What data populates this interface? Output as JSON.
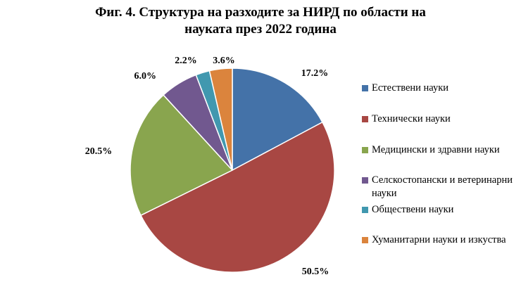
{
  "chart_data": {
    "type": "pie",
    "title_lines": [
      "Фиг. 4. Структура на разходите за НИРД по области на",
      "науката през 2022 година"
    ],
    "slices": [
      {
        "label": "Естествени науки",
        "value": 17.2,
        "display": "17.2%",
        "color": "#4472a8"
      },
      {
        "label": "Технически науки",
        "value": 50.5,
        "display": "50.5%",
        "color": "#a84743"
      },
      {
        "label": "Медицински и здравни науки",
        "value": 20.5,
        "display": "20.5%",
        "color": "#89a54e"
      },
      {
        "label": "Селскостопански и ветеринарни науки",
        "value": 6.0,
        "display": "6.0%",
        "color": "#71588f"
      },
      {
        "label": "Обществени науки",
        "value": 2.2,
        "display": "2.2%",
        "color": "#4198af"
      },
      {
        "label": "Хуманитарни науки и изкуства",
        "value": 3.6,
        "display": "3.6%",
        "color": "#db843d"
      }
    ],
    "legend_position": "right"
  }
}
